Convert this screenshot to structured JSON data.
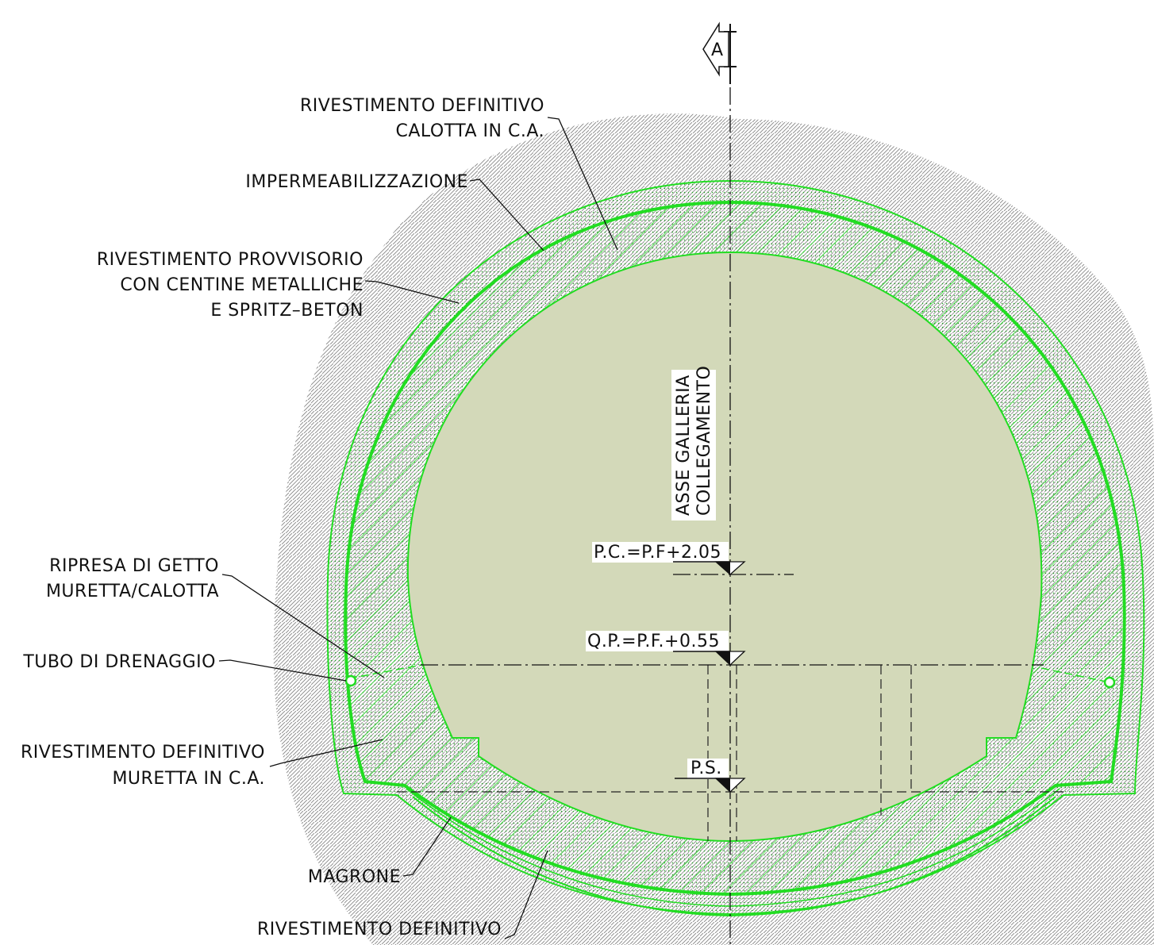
{
  "colors": {
    "lining_green": "#22dd22",
    "interior_fill": "#d3d9b9",
    "ground_hatch": "#8a8a8a",
    "line_black": "#111111"
  },
  "section_marker": {
    "letter": "A"
  },
  "axis_label": {
    "line1": "ASSE GALLERIA",
    "line2": "COLLEGAMENTO"
  },
  "levels": {
    "pc": "P.C.=P.F+2.05",
    "qp": "Q.P.=P.F.+0.55",
    "ps": "P.S."
  },
  "labels": {
    "riv_def_calotta": {
      "line1": "RIVESTIMENTO DEFINITIVO",
      "line2": "CALOTTA IN C.A."
    },
    "impermeabilizzazione": "IMPERMEABILIZZAZIONE",
    "riv_provvisorio": {
      "line1": "RIVESTIMENTO   PROVVISORIO",
      "line2": "CON CENTINE METALLICHE",
      "line3": "E SPRITZ–BETON"
    },
    "ripresa_getto": {
      "line1": "RIPRESA DI GETTO",
      "line2": "MURETTA/CALOTTA"
    },
    "tubo_drenaggio": "TUBO DI DRENAGGIO",
    "riv_def_muretta": {
      "line1": "RIVESTIMENTO DEFINITIVO",
      "line2": "MURETTA IN C.A."
    },
    "magrone": "MAGRONE",
    "riv_def_bottom": "RIVESTIMENTO DEFINITIVO"
  }
}
